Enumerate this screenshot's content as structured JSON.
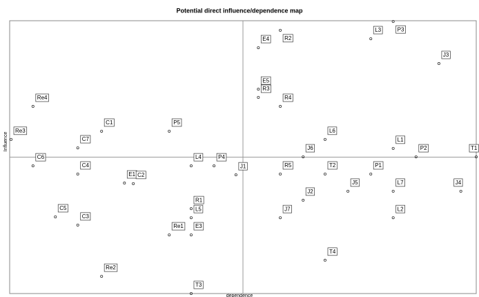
{
  "chart_data": {
    "type": "scatter",
    "title": "Potential direct influence/dependence map",
    "xlabel": "dependence",
    "ylabel": "Influence",
    "xlim": [
      0,
      100
    ],
    "ylim": [
      0,
      100
    ],
    "labels": [
      "Re4",
      "Re3",
      "C6",
      "C7",
      "C1",
      "C4",
      "E1",
      "C2",
      "P5",
      "L4",
      "P4",
      "J1",
      "C5",
      "C3",
      "R1",
      "L5",
      "Re1",
      "E3",
      "Re2",
      "T3",
      "E4",
      "R2",
      "L3",
      "P3",
      "J3",
      "E5",
      "R3",
      "R4",
      "L6",
      "L1",
      "P2",
      "T1",
      "R5",
      "J6",
      "T2",
      "P1",
      "J5",
      "L7",
      "J4",
      "J2",
      "J7",
      "L2",
      "T4"
    ],
    "x": [
      5.0,
      0.3,
      5.0,
      14.6,
      19.7,
      14.6,
      24.6,
      26.5,
      34.2,
      38.9,
      43.8,
      48.5,
      9.8,
      14.6,
      38.9,
      38.9,
      34.2,
      38.9,
      19.7,
      38.9,
      53.3,
      58.0,
      77.4,
      82.2,
      92.0,
      53.3,
      53.3,
      58.0,
      67.6,
      82.2,
      87.1,
      100,
      58.0,
      62.9,
      67.6,
      77.4,
      72.5,
      82.2,
      96.7,
      62.9,
      58.0,
      82.2,
      67.6
    ],
    "y": [
      68.6,
      56.5,
      46.8,
      53.4,
      59.5,
      43.8,
      40.5,
      40.3,
      59.5,
      46.8,
      46.8,
      43.5,
      28.1,
      25.1,
      31.1,
      27.8,
      21.5,
      21.5,
      6.3,
      0,
      90.1,
      96.5,
      93.4,
      99.7,
      84.3,
      74.9,
      71.9,
      68.6,
      56.5,
      53.2,
      50.1,
      50.1,
      43.8,
      50.1,
      43.8,
      43.8,
      37.5,
      37.5,
      37.5,
      34.2,
      27.8,
      27.8,
      12.2
    ]
  }
}
